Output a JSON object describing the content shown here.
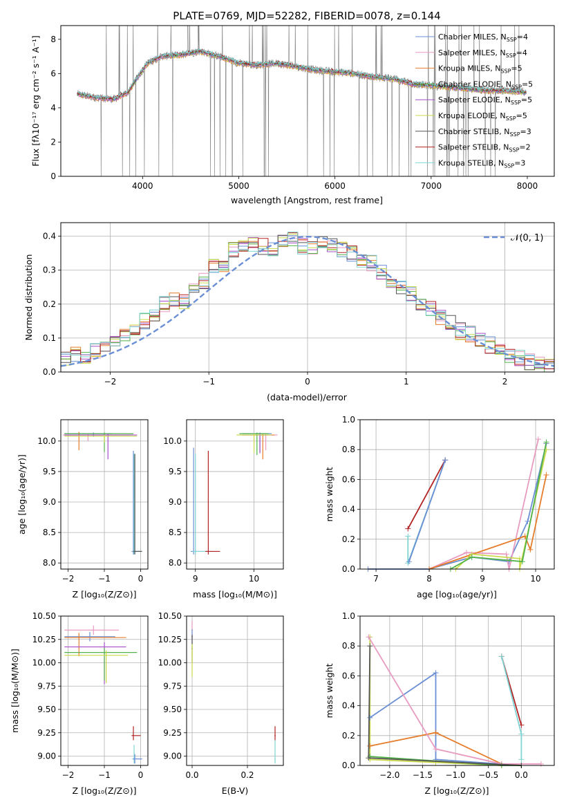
{
  "colors": {
    "c1": "#6a8fd4",
    "c2": "#e89ac0",
    "c3": "#e67c29",
    "c4": "#52b24a",
    "c5": "#a64ec9",
    "c6": "#c9d94a",
    "c7": "#555555",
    "c8": "#b22222",
    "c9": "#7fd4d4",
    "gray": "#808080"
  },
  "chart_data": [
    {
      "id": "spectrum",
      "type": "line",
      "title": "PLATE=0769, MJD=52282, FIBERID=0078, z=0.144",
      "xlabel": "wavelength [Angstrom, rest frame]",
      "ylabel": "Flux [fλ10⁻¹⁷ erg cm⁻² s⁻¹ A⁻¹]",
      "xlim": [
        3150,
        8280
      ],
      "ylim": [
        0,
        8.8
      ],
      "xticks": [
        "4000",
        "5000",
        "6000",
        "7000",
        "8000"
      ],
      "yticks": [
        "0",
        "2",
        "4",
        "6",
        "8"
      ],
      "legend_position": "right",
      "legend": [
        {
          "text": "Chabrier MILES, N",
          "sub": "SSP",
          "tail": "=4",
          "color": "c1"
        },
        {
          "text": "Salpeter MILES, N",
          "sub": "SSP",
          "tail": "=4",
          "color": "c2"
        },
        {
          "text": "Kroupa MILES, N",
          "sub": "SSP",
          "tail": "=5",
          "color": "c3"
        },
        {
          "text": "Chabrier ELODIE, N",
          "sub": "SSP",
          "tail": "=5",
          "color": "c4"
        },
        {
          "text": "Salpeter ELODIE, N",
          "sub": "SSP",
          "tail": "=5",
          "color": "c5"
        },
        {
          "text": "Kroupa ELODIE, N",
          "sub": "SSP",
          "tail": "=5",
          "color": "c6"
        },
        {
          "text": "Chabrier STELIB, N",
          "sub": "SSP",
          "tail": "=3",
          "color": "c7"
        },
        {
          "text": "Salpeter STELIB, N",
          "sub": "SSP",
          "tail": "=2",
          "color": "c8"
        },
        {
          "text": "Kroupa STELIB, N",
          "sub": "SSP",
          "tail": "=3",
          "color": "c9"
        }
      ],
      "continuum_points": [
        [
          3320,
          4.8
        ],
        [
          3500,
          4.6
        ],
        [
          3700,
          4.5
        ],
        [
          3850,
          4.9
        ],
        [
          3950,
          5.8
        ],
        [
          4050,
          6.6
        ],
        [
          4200,
          7.0
        ],
        [
          4400,
          7.1
        ],
        [
          4600,
          7.3
        ],
        [
          4800,
          7.0
        ],
        [
          5000,
          6.6
        ],
        [
          5200,
          6.5
        ],
        [
          5400,
          6.6
        ],
        [
          5600,
          6.4
        ],
        [
          5800,
          6.2
        ],
        [
          6000,
          6.1
        ],
        [
          6200,
          6.0
        ],
        [
          6400,
          5.8
        ],
        [
          6600,
          5.7
        ],
        [
          6800,
          5.4
        ],
        [
          7000,
          5.3
        ],
        [
          7200,
          5.2
        ],
        [
          7400,
          5.1
        ],
        [
          7600,
          5.0
        ],
        [
          7800,
          5.0
        ],
        [
          7980,
          4.9
        ]
      ]
    },
    {
      "id": "residuals",
      "type": "bar",
      "xlabel": "(data-model)/error",
      "ylabel": "Normed distribution",
      "xlim": [
        -2.5,
        2.5
      ],
      "ylim": [
        0,
        0.44
      ],
      "xticks": [
        "−2",
        "−1",
        "0",
        "1",
        "2"
      ],
      "yticks": [
        "0.0",
        "0.1",
        "0.2",
        "0.3",
        "0.4"
      ],
      "legend_position": "top-right",
      "legend": [
        {
          "text": "𝒩(0, 1)",
          "color": "c1"
        }
      ],
      "bin_width": 0.1,
      "bin_start": -2.5,
      "values": [
        0.04,
        0.05,
        0.05,
        0.06,
        0.07,
        0.09,
        0.11,
        0.13,
        0.15,
        0.16,
        0.2,
        0.21,
        0.21,
        0.24,
        0.27,
        0.31,
        0.32,
        0.36,
        0.37,
        0.38,
        0.37,
        0.36,
        0.38,
        0.39,
        0.37,
        0.36,
        0.38,
        0.37,
        0.36,
        0.35,
        0.33,
        0.32,
        0.29,
        0.26,
        0.25,
        0.23,
        0.2,
        0.19,
        0.16,
        0.15,
        0.12,
        0.11,
        0.09,
        0.08,
        0.07,
        0.05,
        0.04,
        0.03,
        0.03,
        0.02
      ]
    },
    {
      "id": "z-age",
      "type": "scatter",
      "xlabel": "Z [log₁₀(Z/Z⊙)]",
      "ylabel": "age  [log₁₀(age/yr)]",
      "xlim": [
        -2.2,
        0.2
      ],
      "ylim": [
        7.9,
        10.35
      ],
      "xticks": [
        "−2",
        "−1",
        "0"
      ],
      "yticks": [
        "8.0",
        "8.5",
        "9.0",
        "9.5",
        "10.0"
      ]
    },
    {
      "id": "mass-age",
      "type": "scatter",
      "xlabel": "mass [log₁₀(M/M⊙)]",
      "xlim": [
        8.85,
        10.5
      ],
      "ylim": [
        7.9,
        10.35
      ],
      "xticks": [
        "9",
        "10"
      ],
      "yticks": [
        "8.0",
        "8.5",
        "9.0",
        "9.5",
        "10.0"
      ]
    },
    {
      "id": "age-weight",
      "type": "line",
      "xlabel": "age  [log₁₀(age/yr)]",
      "ylabel": "mass weight",
      "xlim": [
        6.7,
        10.35
      ],
      "ylim": [
        0,
        1.0
      ],
      "xticks": [
        "7",
        "8",
        "9",
        "10"
      ],
      "yticks": [
        "0.0",
        "0.2",
        "0.4",
        "0.6",
        "0.8",
        "1.0"
      ]
    },
    {
      "id": "z-mass",
      "type": "scatter",
      "xlabel": "Z [log₁₀(Z/Z⊙)]",
      "ylabel": "mass [log₁₀(M/M⊙)]",
      "xlim": [
        -2.2,
        0.2
      ],
      "ylim": [
        8.9,
        10.5
      ],
      "xticks": [
        "−2",
        "−1",
        "0"
      ],
      "yticks": [
        "9.00",
        "9.25",
        "9.50",
        "9.75",
        "10.00",
        "10.25",
        "10.50"
      ]
    },
    {
      "id": "ebv-mass",
      "type": "scatter",
      "xlabel": "E(B-V)",
      "xlim": [
        -0.02,
        0.33
      ],
      "ylim": [
        8.9,
        10.5
      ],
      "xticks": [
        "0.0",
        "0.2"
      ],
      "yticks": [
        "9.00",
        "9.25",
        "9.50",
        "9.75",
        "10.00",
        "10.25",
        "10.50"
      ]
    },
    {
      "id": "z-weight",
      "type": "line",
      "xlabel": "Z [log₁₀(Z/Z⊙)]",
      "ylabel": "mass weight",
      "xlim": [
        -2.45,
        0.5
      ],
      "ylim": [
        0,
        1.0
      ],
      "xticks": [
        "−2.0",
        "−1.5",
        "−1.0",
        "−0.5",
        "0.0"
      ],
      "yticks": [
        "0.0",
        "0.2",
        "0.4",
        "0.6",
        "0.8",
        "1.0"
      ]
    }
  ]
}
